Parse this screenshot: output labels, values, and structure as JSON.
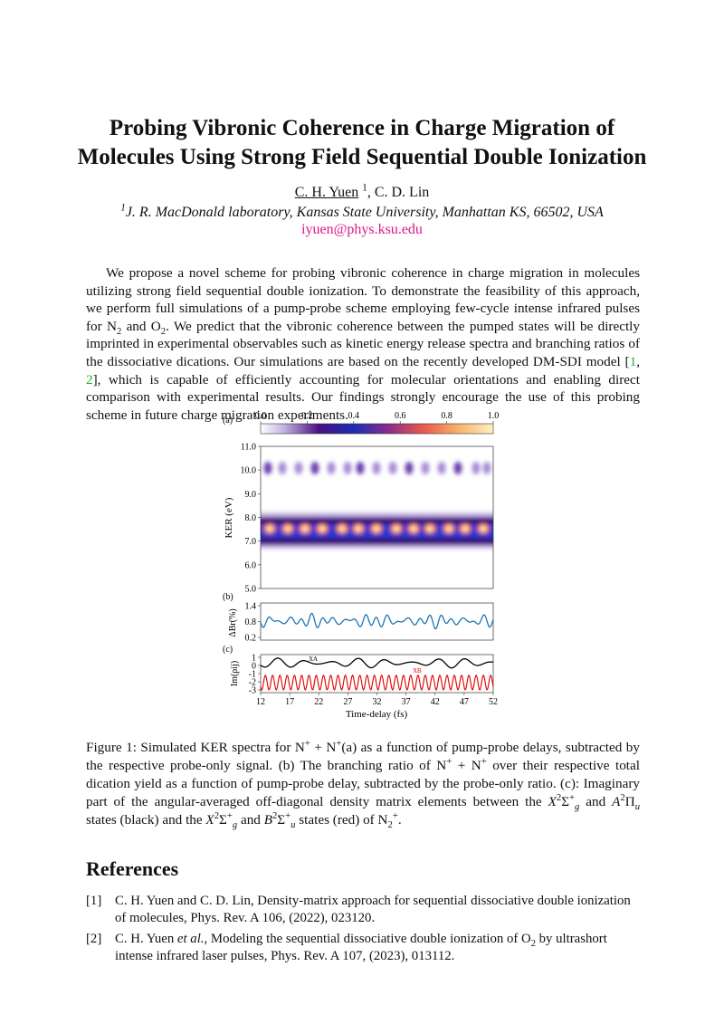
{
  "title_line1": "Probing Vibronic Coherence in Charge Migration of",
  "title_line2": "Molecules Using Strong Field Sequential Double Ionization",
  "authors": {
    "first": "C. H. Yuen",
    "first_aff": "1",
    "rest": ", C. D. Lin"
  },
  "affiliation": {
    "mark": "1",
    "text": "J. R. MacDonald laboratory, Kansas State University, Manhattan KS, 66502, USA"
  },
  "email": "iyuen@phys.ksu.edu",
  "abstract": {
    "p1": "We propose a novel scheme for probing vibronic coherence in charge migration in molecules utilizing strong field sequential double ionization. To demonstrate the feasibility of this approach, we perform full simulations of a pump-probe scheme employing few-cycle intense infrared pulses for N",
    "p2": " and O",
    "p3": ". We predict that the vibronic coherence between the pumped states will be directly imprinted in experimental observables such as kinetic energy release spectra and branching ratios of the dissociative dications. Our simulations are based on the recently developed DM-SDI model [",
    "c1": "1",
    "c2": "2",
    "p4": "], which is capable of efficiently accounting for molecular orientations and enabling direct comparison with experimental results. Our findings strongly encourage the use of this probing scheme in future charge migration experiments."
  },
  "figure": {
    "panel_a": "(a)",
    "panel_b": "(b)",
    "panel_c": "(c)",
    "colorbar_ticks": [
      "0.0",
      "0.2",
      "0.4",
      "0.6",
      "0.8",
      "1.0"
    ],
    "ker_ticks": [
      "11.0",
      "10.0",
      "9.0",
      "8.0",
      "7.0",
      "6.0",
      "5.0"
    ],
    "ker_label": "KER (eV)",
    "br_ticks": [
      "1.4",
      "0.8",
      "0.2"
    ],
    "br_label": "ΔBr(%)",
    "im_ticks": [
      "1",
      "0",
      "-1",
      "-2",
      "-3"
    ],
    "im_label": "Im(ρij)",
    "xa_label": "XA",
    "xb_label": "XB",
    "x_ticks": [
      "12",
      "17",
      "22",
      "27",
      "32",
      "37",
      "42",
      "47",
      "52"
    ],
    "x_label": "Time-delay (fs)",
    "colors": {
      "br_line": "#1f77b4",
      "xa_line": "#000000",
      "xb_line": "#e00000"
    }
  },
  "caption": {
    "t1": "Figure 1: Simulated KER spectra for N",
    "t2": " + N",
    "t3": "(a) as a function of pump-probe delays, subtracted by the respective probe-only signal. (b) The branching ratio of N",
    "t4": " + N",
    "t5": " over their respective total dication yield as a function of pump-probe delay, subtracted by the probe-only ratio. (c): Imaginary part of the angular-averaged off-diagonal density matrix elements between the ",
    "t6": " and ",
    "t7": " states (black) and the ",
    "t8": " and ",
    "t9": " states (red) of N",
    "t10": "."
  },
  "references_heading": "References",
  "references": [
    {
      "num": "[1]",
      "text": "C. H. Yuen and C. D. Lin, Density-matrix approach for sequential dissociative double ionization of molecules, Phys. Rev. A 106, (2022), 023120."
    },
    {
      "num": "[2]",
      "pre": "C. H. Yuen ",
      "etal": "et al.",
      "mid": ", Modeling the sequential dissociative double ionization of O",
      "sub": "2",
      "post": " by ultrashort intense infrared laser pulses, Phys. Rev. A 107, (2023), 013112."
    }
  ]
}
